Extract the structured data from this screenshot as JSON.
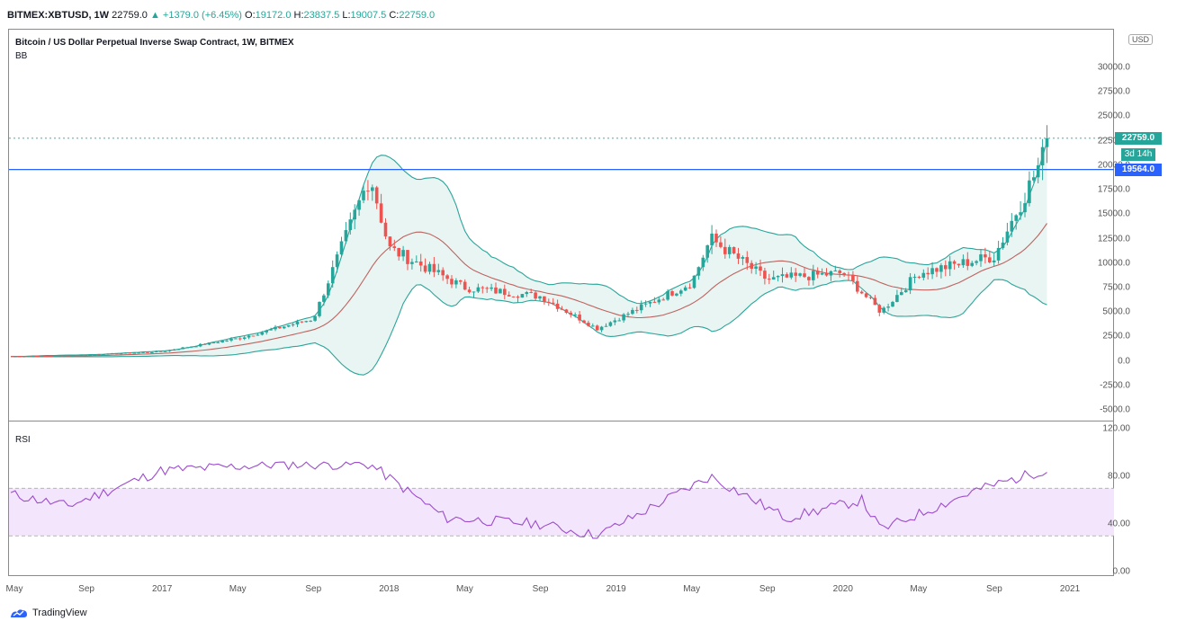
{
  "header": {
    "symbol": "BITMEX:XBTUSD, 1W",
    "last": "22759.0",
    "change": "+1379.0 (+6.45%)",
    "open_label": "O:",
    "open": "19172.0",
    "high_label": "H:",
    "high": "23837.5",
    "low_label": "L:",
    "low": "19007.5",
    "close_label": "C:",
    "close": "22759.0"
  },
  "chart_title": "Bitcoin / US Dollar Perpetual Inverse Swap Contract, 1W, BITMEX",
  "indicator_label": "BB",
  "rsi_label": "RSI",
  "currency_button": "USD",
  "price_tag": "22759.0",
  "time_tag": "3d 14h",
  "hline_tag": "19564.0",
  "brand": "TradingView",
  "colors": {
    "up": "#26a69a",
    "down": "#ef5350",
    "basis": "#c0635f",
    "bands": "#2aa59a",
    "band_fill": "#e8f5f3",
    "rsi_line": "#9c4dcc",
    "rsi_fill": "#f3e5fb",
    "hline": "#2962ff"
  },
  "chart_data": [
    {
      "type": "candlestick",
      "title": "Bitcoin / US Dollar Perpetual Inverse Swap Contract, 1W, BITMEX",
      "indicator": "BB",
      "ylim": [
        -6500,
        32000
      ],
      "yticks": [
        "30000.0",
        "27500.0",
        "25000.0",
        "22500.0",
        "20000.0",
        "17500.0",
        "15000.0",
        "12500.0",
        "10000.0",
        "7500.0",
        "5000.0",
        "2500.0",
        "0.0",
        "-2500.0",
        "-5000.0"
      ],
      "xticks": [
        "May",
        "Sep",
        "2017",
        "May",
        "Sep",
        "2018",
        "May",
        "Sep",
        "2019",
        "May",
        "Sep",
        "2020",
        "May",
        "Sep",
        "2021"
      ],
      "horizontal_line": 19564.0,
      "last_price": 22759.0,
      "close_series": [
        {
          "date": "2016-05",
          "close": 450
        },
        {
          "date": "2016-09",
          "close": 610
        },
        {
          "date": "2017-01",
          "close": 970
        },
        {
          "date": "2017-05",
          "close": 2300
        },
        {
          "date": "2017-09",
          "close": 4300
        },
        {
          "date": "2017-12",
          "close": 19000
        },
        {
          "date": "2018-01",
          "close": 11500
        },
        {
          "date": "2018-05",
          "close": 7500
        },
        {
          "date": "2018-09",
          "close": 6600
        },
        {
          "date": "2018-12",
          "close": 3300
        },
        {
          "date": "2019-05",
          "close": 8000
        },
        {
          "date": "2019-06",
          "close": 12500
        },
        {
          "date": "2019-09",
          "close": 8300
        },
        {
          "date": "2020-01",
          "close": 9000
        },
        {
          "date": "2020-03",
          "close": 5000
        },
        {
          "date": "2020-05",
          "close": 9000
        },
        {
          "date": "2020-09",
          "close": 10700
        },
        {
          "date": "2020-11",
          "close": 18500
        },
        {
          "date": "2020-12",
          "close": 22759
        }
      ]
    },
    {
      "type": "line",
      "title": "RSI",
      "ylim": [
        0,
        120
      ],
      "yticks": [
        "120.00",
        "80.00",
        "40.00",
        "0.00"
      ],
      "band": [
        30,
        70
      ],
      "series": [
        {
          "date": "2016-05",
          "value": 65
        },
        {
          "date": "2016-08",
          "value": 55
        },
        {
          "date": "2017-01",
          "value": 85
        },
        {
          "date": "2017-07",
          "value": 90
        },
        {
          "date": "2017-12",
          "value": 90
        },
        {
          "date": "2018-04",
          "value": 45
        },
        {
          "date": "2018-09",
          "value": 40
        },
        {
          "date": "2018-12",
          "value": 30
        },
        {
          "date": "2019-06",
          "value": 80
        },
        {
          "date": "2019-10",
          "value": 45
        },
        {
          "date": "2020-02",
          "value": 60
        },
        {
          "date": "2020-03",
          "value": 35
        },
        {
          "date": "2020-08",
          "value": 68
        },
        {
          "date": "2020-12",
          "value": 87
        }
      ]
    }
  ]
}
